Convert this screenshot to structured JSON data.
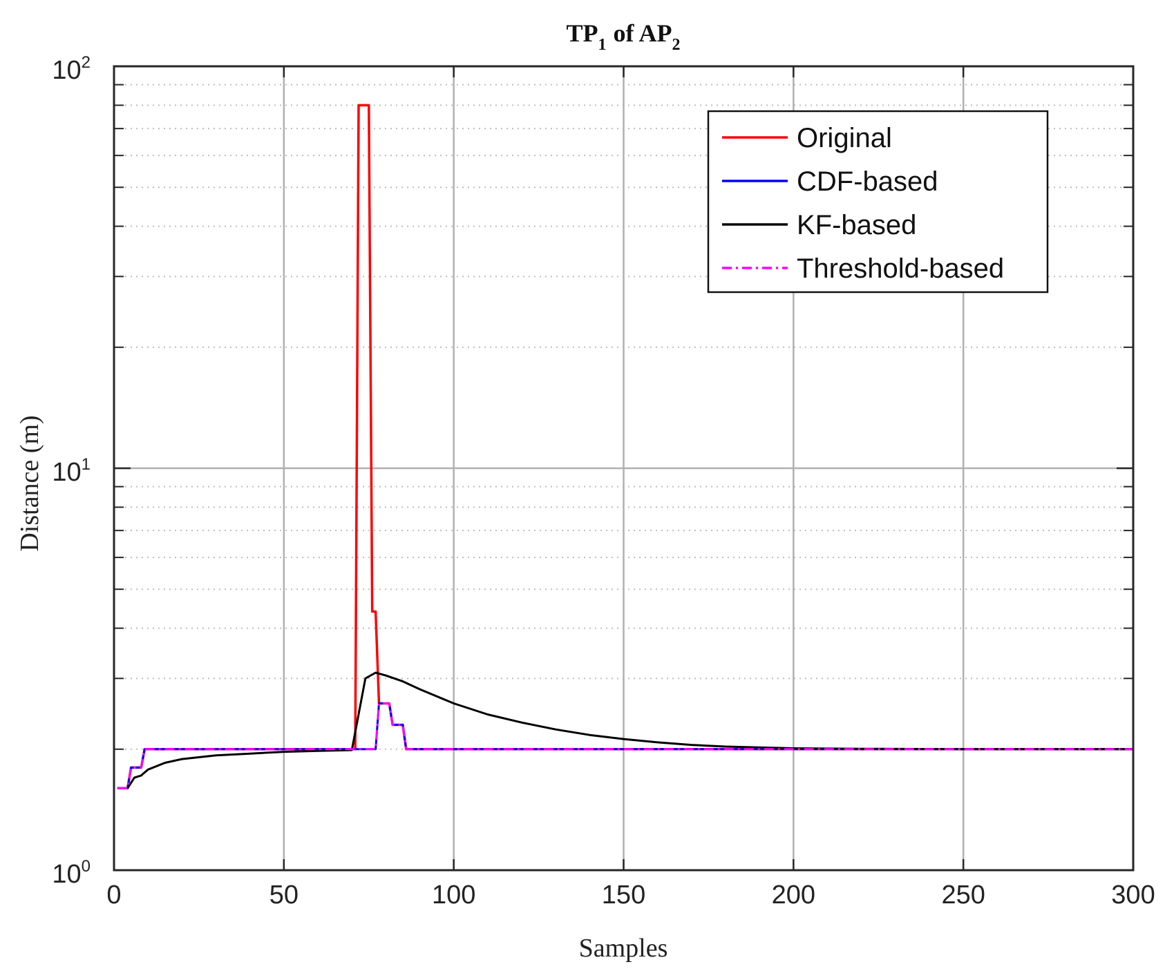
{
  "chart_data": {
    "type": "line",
    "title": {
      "prefix": "TP",
      "sub1": "1",
      "middle": "of AP",
      "sub2": "2"
    },
    "xlabel": "Samples",
    "ylabel": "Distance (m)",
    "yscale": "log",
    "xlim": [
      0,
      300
    ],
    "ylim": [
      1,
      100
    ],
    "grid": true,
    "legend_position": "top-right",
    "x_ticks": [
      {
        "value": 0,
        "label": "0"
      },
      {
        "value": 50,
        "label": "50"
      },
      {
        "value": 100,
        "label": "100"
      },
      {
        "value": 150,
        "label": "150"
      },
      {
        "value": 200,
        "label": "200"
      },
      {
        "value": 250,
        "label": "250"
      },
      {
        "value": 300,
        "label": "300"
      }
    ],
    "y_ticks": [
      {
        "value": 1,
        "base": "10",
        "exp": "0"
      },
      {
        "value": 10,
        "base": "10",
        "exp": "1"
      },
      {
        "value": 100,
        "base": "10",
        "exp": "2"
      }
    ],
    "series": [
      {
        "name": "Original",
        "color": "#ff0000",
        "style": "solid",
        "points": [
          [
            1,
            1.6
          ],
          [
            4,
            1.6
          ],
          [
            5,
            1.8
          ],
          [
            8,
            1.8
          ],
          [
            9,
            2.0
          ],
          [
            71,
            2.0
          ],
          [
            72,
            80
          ],
          [
            74,
            80
          ],
          [
            75,
            80
          ],
          [
            76,
            4.4
          ],
          [
            77,
            4.4
          ],
          [
            78,
            2.6
          ],
          [
            79,
            2.6
          ],
          [
            80,
            2.6
          ],
          [
            81,
            2.6
          ],
          [
            82,
            2.3
          ],
          [
            84,
            2.3
          ],
          [
            85,
            2.3
          ],
          [
            86,
            2.0
          ],
          [
            300,
            2.0
          ]
        ]
      },
      {
        "name": "CDF-based",
        "color": "#0000ff",
        "style": "solid",
        "points": [
          [
            1,
            1.6
          ],
          [
            4,
            1.6
          ],
          [
            5,
            1.8
          ],
          [
            8,
            1.8
          ],
          [
            9,
            2.0
          ],
          [
            77,
            2.0
          ],
          [
            78,
            2.6
          ],
          [
            81,
            2.6
          ],
          [
            82,
            2.3
          ],
          [
            85,
            2.3
          ],
          [
            86,
            2.0
          ],
          [
            300,
            2.0
          ]
        ]
      },
      {
        "name": "KF-based",
        "color": "#000000",
        "style": "solid",
        "points": [
          [
            1,
            1.6
          ],
          [
            4,
            1.6
          ],
          [
            6,
            1.7
          ],
          [
            8,
            1.72
          ],
          [
            10,
            1.78
          ],
          [
            15,
            1.85
          ],
          [
            20,
            1.89
          ],
          [
            30,
            1.93
          ],
          [
            40,
            1.95
          ],
          [
            50,
            1.97
          ],
          [
            60,
            1.98
          ],
          [
            70,
            1.99
          ],
          [
            74,
            3.0
          ],
          [
            77,
            3.1
          ],
          [
            80,
            3.05
          ],
          [
            85,
            2.95
          ],
          [
            90,
            2.82
          ],
          [
            100,
            2.6
          ],
          [
            110,
            2.44
          ],
          [
            120,
            2.33
          ],
          [
            130,
            2.24
          ],
          [
            140,
            2.17
          ],
          [
            150,
            2.12
          ],
          [
            160,
            2.08
          ],
          [
            170,
            2.05
          ],
          [
            180,
            2.03
          ],
          [
            190,
            2.02
          ],
          [
            200,
            2.01
          ],
          [
            220,
            2.005
          ],
          [
            250,
            2.0
          ],
          [
            300,
            2.0
          ]
        ]
      },
      {
        "name": "Threshold-based",
        "color": "#ff00ff",
        "style": "dashdot",
        "points": [
          [
            1,
            1.6
          ],
          [
            4,
            1.6
          ],
          [
            5,
            1.8
          ],
          [
            8,
            1.8
          ],
          [
            9,
            2.0
          ],
          [
            77,
            2.0
          ],
          [
            78,
            2.6
          ],
          [
            81,
            2.6
          ],
          [
            82,
            2.3
          ],
          [
            85,
            2.3
          ],
          [
            86,
            2.0
          ],
          [
            300,
            2.0
          ]
        ]
      }
    ]
  }
}
